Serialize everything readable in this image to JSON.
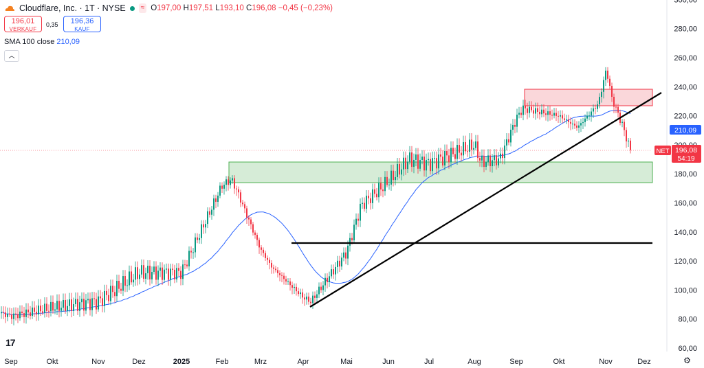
{
  "header": {
    "title": "Cloudflare, Inc. · 1T · NYSE",
    "status_dot_color": "#089981",
    "wave_icon": "≈",
    "ohlc": {
      "o_label": "O",
      "o": "197,00",
      "h_label": "H",
      "h": "197,51",
      "l_label": "L",
      "l": "193,10",
      "c_label": "C",
      "c": "196,08",
      "change": "−0,45 (−0,23%)"
    }
  },
  "trade": {
    "sell_price": "196,01",
    "sell_label": "VERKAUF",
    "spread": "0,35",
    "buy_price": "196,36",
    "buy_label": "KAUF"
  },
  "indicator": {
    "name": "SMA 100 close",
    "value": "210,09"
  },
  "collapse_icon": "chevron-up-icon",
  "price_axis": {
    "ticks": [
      "300,00",
      "280,00",
      "260,00",
      "240,00",
      "220,00",
      "200,00",
      "180,00",
      "160,00",
      "140,00",
      "120,00",
      "100,00",
      "80,00",
      "60,00"
    ],
    "sma_badge": "210,09",
    "last_ticker": "NET",
    "last_price": "196,08",
    "countdown": "54:19"
  },
  "time_axis": {
    "labels": [
      "Sep",
      "Okt",
      "Nov",
      "Dez",
      "2025",
      "Feb",
      "Mrz",
      "Apr",
      "Mai",
      "Jun",
      "Jul",
      "Aug",
      "Sep",
      "Okt",
      "Nov",
      "Dez"
    ]
  },
  "colors": {
    "up": "#089981",
    "down": "#f23645",
    "sma": "#2962ff",
    "support_zone": "#c8e6c9",
    "resistance_zone": "#f8c9ce"
  },
  "chart_data": {
    "type": "candlestick",
    "y_range": [
      60,
      300
    ],
    "sma_period": 100,
    "key_closes": [
      {
        "x": "Sep",
        "y": 82
      },
      {
        "x": "Okt",
        "y": 88
      },
      {
        "x": "Nov",
        "y": 92
      },
      {
        "x": "Dez",
        "y": 112
      },
      {
        "x": "2025",
        "y": 112
      },
      {
        "x": "Feb",
        "y": 172
      },
      {
        "x": "Mrz",
        "y": 128
      },
      {
        "x": "Apr",
        "y": 95
      },
      {
        "x": "Mai",
        "y": 126
      },
      {
        "x": "Jun",
        "y": 175
      },
      {
        "x": "Jul",
        "y": 187
      },
      {
        "x": "Aug",
        "y": 200
      },
      {
        "x": "Sep",
        "y": 218
      },
      {
        "x": "Okt",
        "y": 220
      },
      {
        "x": "Nov",
        "y": 250
      },
      {
        "x": "Dez",
        "y": 196.08
      }
    ],
    "annotations": {
      "support_zone": [
        174,
        188
      ],
      "resistance_zone": [
        226,
        237
      ],
      "horizontal_line": 132,
      "trendline": [
        {
          "x": "Apr",
          "y": 89
        },
        {
          "x": "Nov",
          "y": 235
        }
      ]
    }
  }
}
